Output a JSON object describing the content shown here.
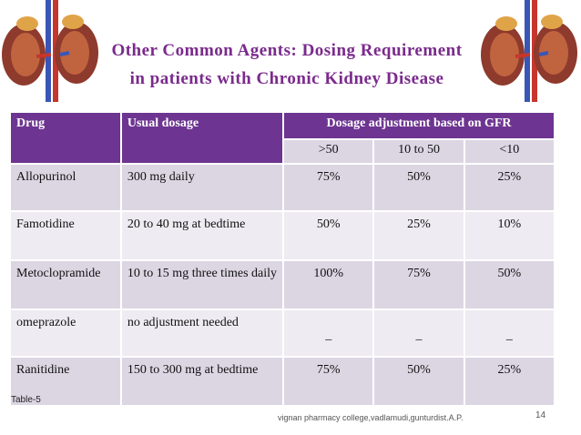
{
  "title": {
    "line1": "Other Common Agents: Dosing Requirement",
    "line2": "in patients with Chronic Kidney Disease"
  },
  "table": {
    "headers": {
      "drug": "Drug",
      "dosage": "Usual dosage",
      "adjustment": "Dosage adjustment based on GFR"
    },
    "gfr_ranges": [
      ">50",
      "10 to 50",
      "<10"
    ],
    "rows": [
      {
        "drug": "Allopurinol",
        "dosage": " 300 mg daily",
        "gt50": "75%",
        "mid": "50%",
        "lt10": "25%"
      },
      {
        "drug": "Famotidine",
        "dosage": "20 to 40 mg at bedtime",
        "gt50": "50%",
        "mid": "25%",
        "lt10": "10%"
      },
      {
        "drug": "Metoclopramide",
        "dosage": "10 to 15 mg three times daily",
        "gt50": "100%",
        "mid": "75%",
        "lt10": "50%"
      },
      {
        "drug": "omeprazole",
        "dosage": " no adjustment needed",
        "gt50": "_",
        "mid": "_",
        "lt10": "_"
      },
      {
        "drug": "Ranitidine",
        "dosage": " 150 to 300 mg at bedtime",
        "gt50": "75%",
        "mid": "50%",
        "lt10": "25%"
      }
    ]
  },
  "footer": {
    "table_label": "Table-5",
    "college": "vignan pharmacy college,vadlamudi,gunturdist.A.P.",
    "page_number": "14"
  },
  "colors": {
    "header_purple": "#6d3591",
    "title_purple": "#7a2a8c",
    "row_dark": "#dcd6e3",
    "row_light": "#eeebf2"
  },
  "icons": {
    "left": "kidney-illustration",
    "right": "kidney-illustration"
  }
}
